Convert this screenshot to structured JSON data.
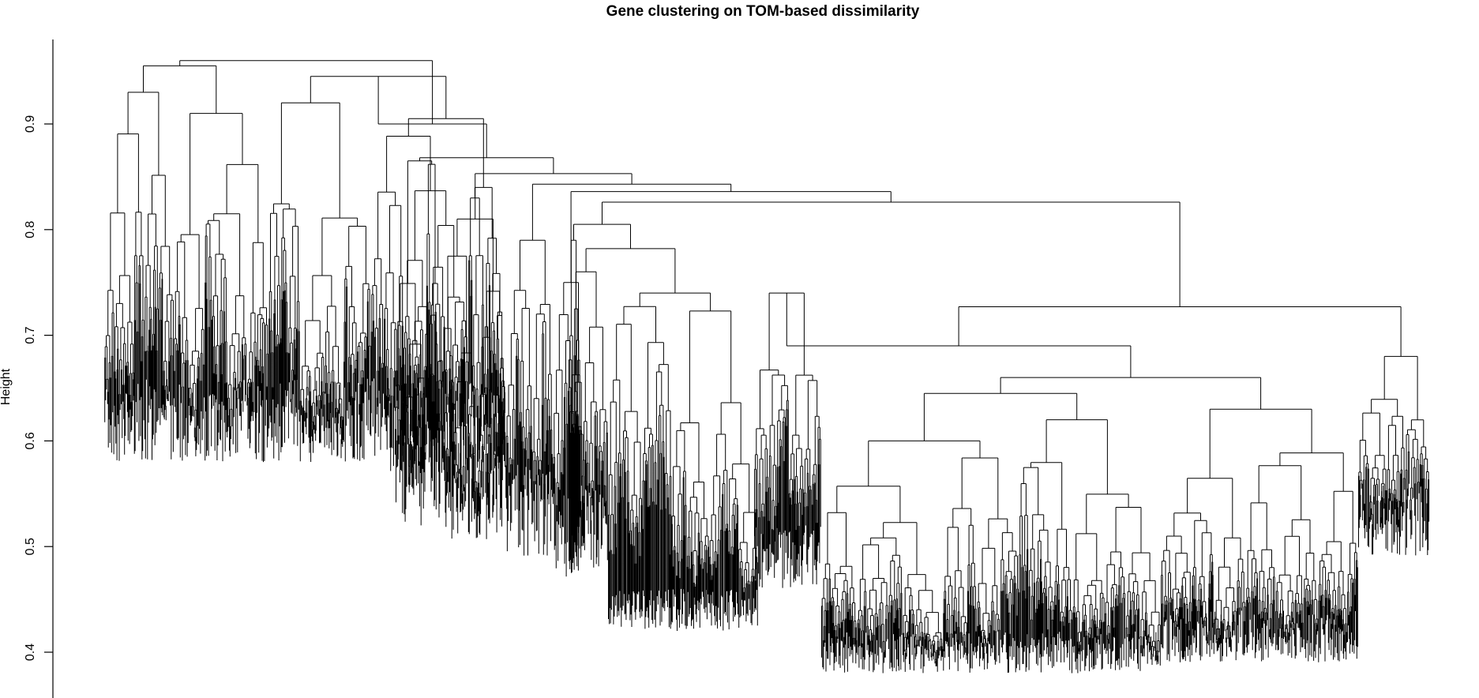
{
  "chart_data": {
    "type": "dendrogram",
    "title": "Gene clustering on TOM-based dissimilarity",
    "ylabel": "Height",
    "ylim": [
      0.365,
      0.98
    ],
    "yticks": [
      0.4,
      0.5,
      0.6,
      0.7,
      0.8,
      0.9
    ],
    "ytick_labels": [
      "0.4",
      "0.5",
      "0.6",
      "0.7",
      "0.8",
      "0.9"
    ],
    "line_color": "#000000",
    "top_merges": [
      {
        "height": 0.955,
        "note": "left dense block"
      },
      {
        "height": 0.945
      },
      {
        "height": 0.935
      },
      {
        "height": 0.93
      },
      {
        "height": 0.91
      },
      {
        "height": 0.9
      },
      {
        "height": 0.868
      },
      {
        "height": 0.856
      },
      {
        "height": 0.853
      },
      {
        "height": 0.843
      },
      {
        "height": 0.836
      },
      {
        "height": 0.827
      },
      {
        "height": 0.826
      },
      {
        "height": 0.805
      },
      {
        "height": 0.782
      },
      {
        "height": 0.733
      },
      {
        "height": 0.727
      },
      {
        "height": 0.703
      },
      {
        "height": 0.69
      }
    ],
    "min_leaf_height": 0.37
  }
}
